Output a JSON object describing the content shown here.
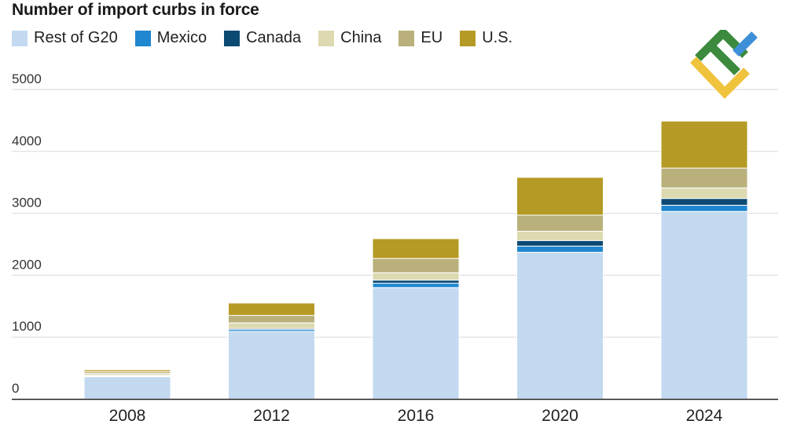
{
  "chart_data": {
    "type": "bar",
    "stacked": true,
    "title": "Number of import curbs in force",
    "categories": [
      "2008",
      "2012",
      "2016",
      "2020",
      "2024"
    ],
    "ylim": [
      0,
      5000
    ],
    "yticks": [
      0,
      1000,
      2000,
      3000,
      4000,
      5000
    ],
    "grid": true,
    "legend_position": "top-left",
    "series": [
      {
        "name": "Rest of G20",
        "color": "#c2d9f0",
        "values": [
          360,
          1090,
          1800,
          2370,
          3030
        ]
      },
      {
        "name": "Mexico",
        "color": "#1f86d0",
        "values": [
          10,
          30,
          70,
          100,
          100
        ]
      },
      {
        "name": "Canada",
        "color": "#0b4a72",
        "values": [
          10,
          20,
          50,
          90,
          110
        ]
      },
      {
        "name": "China",
        "color": "#ddd9b0",
        "values": [
          30,
          90,
          120,
          150,
          170
        ]
      },
      {
        "name": "EU",
        "color": "#b9b07b",
        "values": [
          30,
          120,
          230,
          260,
          320
        ]
      },
      {
        "name": "U.S.",
        "color": "#b59a25",
        "values": [
          30,
          200,
          320,
          610,
          760
        ]
      }
    ]
  }
}
